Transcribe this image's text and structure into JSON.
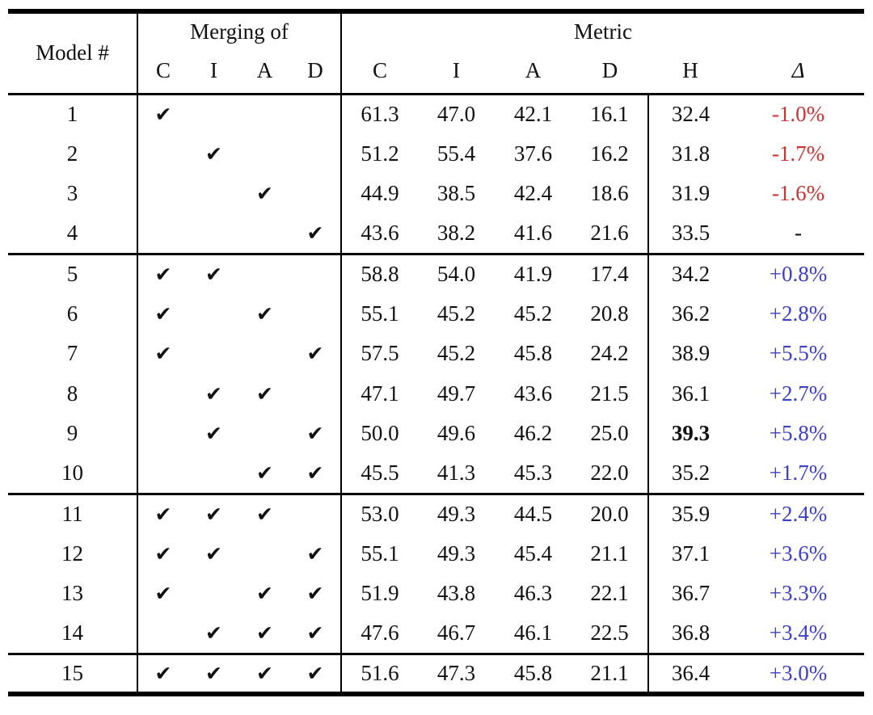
{
  "table": {
    "header": {
      "model": "Model #",
      "merging_group": "Merging of",
      "metric_group": "Metric",
      "merging_subcols": [
        "C",
        "I",
        "A",
        "D"
      ],
      "metric_subcols": [
        "C",
        "I",
        "A",
        "D",
        "H",
        "Δ"
      ]
    },
    "check_glyph": "✔",
    "colors": {
      "ink": "#111111",
      "negative_delta": "#cc3333",
      "positive_delta": "#3c40c8"
    },
    "groups": [
      {
        "rows": [
          {
            "model": "1",
            "merge": [
              true,
              false,
              false,
              false
            ],
            "metrics": [
              "61.3",
              "47.0",
              "42.1",
              "16.1"
            ],
            "h": "32.4",
            "h_bold": false,
            "delta": "-1.0%",
            "delta_sign": "negative"
          },
          {
            "model": "2",
            "merge": [
              false,
              true,
              false,
              false
            ],
            "metrics": [
              "51.2",
              "55.4",
              "37.6",
              "16.2"
            ],
            "h": "31.8",
            "h_bold": false,
            "delta": "-1.7%",
            "delta_sign": "negative"
          },
          {
            "model": "3",
            "merge": [
              false,
              false,
              true,
              false
            ],
            "metrics": [
              "44.9",
              "38.5",
              "42.4",
              "18.6"
            ],
            "h": "31.9",
            "h_bold": false,
            "delta": "-1.6%",
            "delta_sign": "negative"
          },
          {
            "model": "4",
            "merge": [
              false,
              false,
              false,
              true
            ],
            "metrics": [
              "43.6",
              "38.2",
              "41.6",
              "21.6"
            ],
            "h": "33.5",
            "h_bold": false,
            "delta": "-",
            "delta_sign": "none"
          }
        ]
      },
      {
        "rows": [
          {
            "model": "5",
            "merge": [
              true,
              true,
              false,
              false
            ],
            "metrics": [
              "58.8",
              "54.0",
              "41.9",
              "17.4"
            ],
            "h": "34.2",
            "h_bold": false,
            "delta": "+0.8%",
            "delta_sign": "positive"
          },
          {
            "model": "6",
            "merge": [
              true,
              false,
              true,
              false
            ],
            "metrics": [
              "55.1",
              "45.2",
              "45.2",
              "20.8"
            ],
            "h": "36.2",
            "h_bold": false,
            "delta": "+2.8%",
            "delta_sign": "positive"
          },
          {
            "model": "7",
            "merge": [
              true,
              false,
              false,
              true
            ],
            "metrics": [
              "57.5",
              "45.2",
              "45.8",
              "24.2"
            ],
            "h": "38.9",
            "h_bold": false,
            "delta": "+5.5%",
            "delta_sign": "positive"
          },
          {
            "model": "8",
            "merge": [
              false,
              true,
              true,
              false
            ],
            "metrics": [
              "47.1",
              "49.7",
              "43.6",
              "21.5"
            ],
            "h": "36.1",
            "h_bold": false,
            "delta": "+2.7%",
            "delta_sign": "positive"
          },
          {
            "model": "9",
            "merge": [
              false,
              true,
              false,
              true
            ],
            "metrics": [
              "50.0",
              "49.6",
              "46.2",
              "25.0"
            ],
            "h": "39.3",
            "h_bold": true,
            "delta": "+5.8%",
            "delta_sign": "positive"
          },
          {
            "model": "10",
            "merge": [
              false,
              false,
              true,
              true
            ],
            "metrics": [
              "45.5",
              "41.3",
              "45.3",
              "22.0"
            ],
            "h": "35.2",
            "h_bold": false,
            "delta": "+1.7%",
            "delta_sign": "positive"
          }
        ]
      },
      {
        "rows": [
          {
            "model": "11",
            "merge": [
              true,
              true,
              true,
              false
            ],
            "metrics": [
              "53.0",
              "49.3",
              "44.5",
              "20.0"
            ],
            "h": "35.9",
            "h_bold": false,
            "delta": "+2.4%",
            "delta_sign": "positive"
          },
          {
            "model": "12",
            "merge": [
              true,
              true,
              false,
              true
            ],
            "metrics": [
              "55.1",
              "49.3",
              "45.4",
              "21.1"
            ],
            "h": "37.1",
            "h_bold": false,
            "delta": "+3.6%",
            "delta_sign": "positive"
          },
          {
            "model": "13",
            "merge": [
              true,
              false,
              true,
              true
            ],
            "metrics": [
              "51.9",
              "43.8",
              "46.3",
              "22.1"
            ],
            "h": "36.7",
            "h_bold": false,
            "delta": "+3.3%",
            "delta_sign": "positive"
          },
          {
            "model": "14",
            "merge": [
              false,
              true,
              true,
              true
            ],
            "metrics": [
              "47.6",
              "46.7",
              "46.1",
              "22.5"
            ],
            "h": "36.8",
            "h_bold": false,
            "delta": "+3.4%",
            "delta_sign": "positive"
          }
        ]
      },
      {
        "rows": [
          {
            "model": "15",
            "merge": [
              true,
              true,
              true,
              true
            ],
            "metrics": [
              "51.6",
              "47.3",
              "45.8",
              "21.1"
            ],
            "h": "36.4",
            "h_bold": false,
            "delta": "+3.0%",
            "delta_sign": "positive"
          }
        ]
      }
    ]
  }
}
